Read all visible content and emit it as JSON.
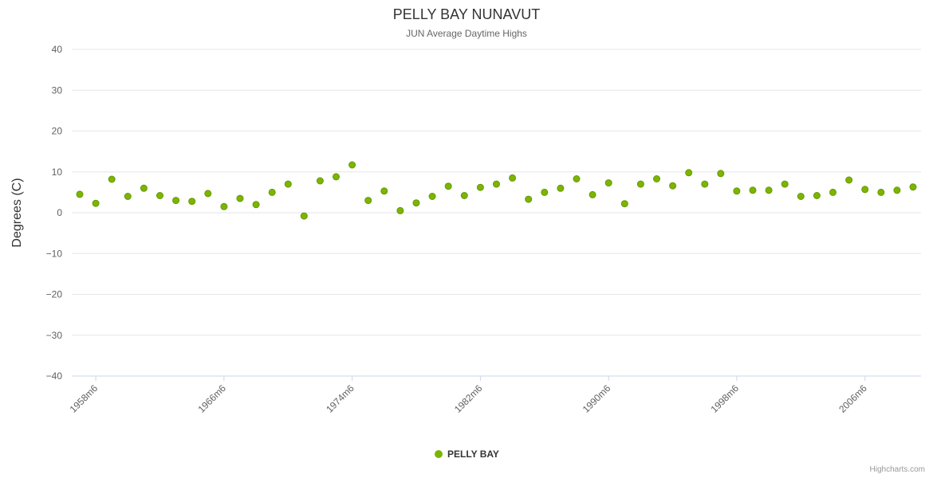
{
  "title": "PELLY BAY NUNAVUT",
  "subtitle": "JUN Average Daytime Highs",
  "y_axis": {
    "title": "Degrees (C)",
    "min": -40,
    "max": 40,
    "tick_interval": 10
  },
  "x_axis": {
    "labels": [
      "1958m6",
      "1966m6",
      "1974m6",
      "1982m6",
      "1990m6",
      "1998m6",
      "2006m6"
    ]
  },
  "legend": {
    "label": "PELLY BAY"
  },
  "credits": "Highcharts.com",
  "colors": {
    "series": "#7cb500",
    "series_stroke": "#669900",
    "grid": "#e6e6e6",
    "axis_line": "#ccd6eb"
  },
  "chart_data": {
    "type": "scatter",
    "title": "PELLY BAY NUNAVUT",
    "subtitle": "JUN Average Daytime Highs",
    "xlabel": "",
    "ylabel": "Degrees (C)",
    "ylim": [
      -40,
      40
    ],
    "grid": true,
    "legend_position": "bottom",
    "series_name": "PELLY BAY",
    "x": [
      "1957m6",
      "1958m6",
      "1959m6",
      "1960m6",
      "1961m6",
      "1962m6",
      "1963m6",
      "1964m6",
      "1965m6",
      "1966m6",
      "1967m6",
      "1968m6",
      "1969m6",
      "1970m6",
      "1971m6",
      "1972m6",
      "1973m6",
      "1974m6",
      "1975m6",
      "1976m6",
      "1977m6",
      "1978m6",
      "1979m6",
      "1980m6",
      "1981m6",
      "1982m6",
      "1983m6",
      "1984m6",
      "1985m6",
      "1986m6",
      "1987m6",
      "1988m6",
      "1989m6",
      "1990m6",
      "1991m6",
      "1992m6",
      "1993m6",
      "1994m6",
      "1995m6",
      "1996m6",
      "1997m6",
      "1998m6",
      "1999m6",
      "2000m6",
      "2001m6",
      "2002m6",
      "2003m6",
      "2004m6",
      "2005m6",
      "2006m6",
      "2007m6",
      "2008m6",
      "2009m6"
    ],
    "values": [
      4.5,
      2.3,
      8.2,
      4.0,
      6.0,
      4.2,
      3.0,
      2.8,
      4.7,
      1.5,
      3.5,
      2.0,
      5.0,
      7.0,
      -0.8,
      7.8,
      8.8,
      11.7,
      3.0,
      5.3,
      0.5,
      2.4,
      4.0,
      6.5,
      4.2,
      6.2,
      7.0,
      8.5,
      3.3,
      5.0,
      6.0,
      8.3,
      4.4,
      7.3,
      2.2,
      7.0,
      8.3,
      6.6,
      9.8,
      7.0,
      9.6,
      5.3,
      5.5,
      5.5,
      7.0,
      4.0,
      4.2,
      5.0,
      8.0,
      5.7,
      5.0,
      5.5,
      6.3
    ]
  }
}
